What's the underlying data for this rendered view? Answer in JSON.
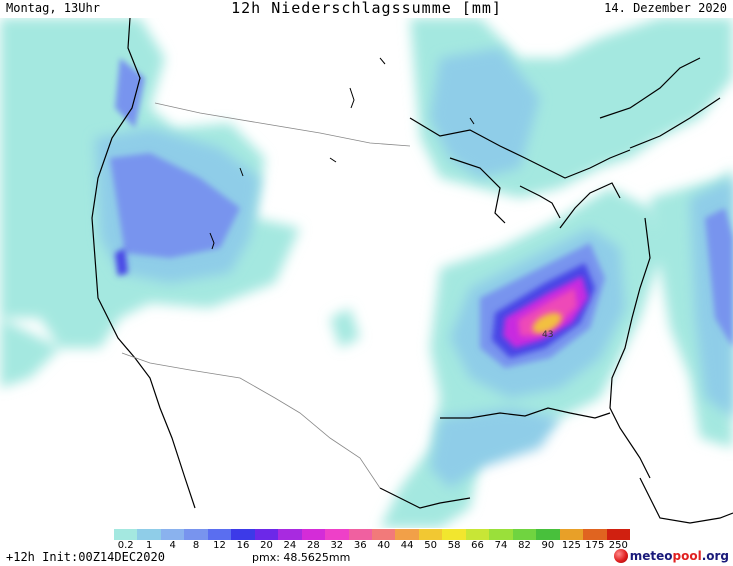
{
  "header": {
    "day_time": "Montag, 13Uhr",
    "title": "12h Niederschlagssumme [mm]",
    "date": "14. Dezember 2020"
  },
  "map": {
    "max_label": "43",
    "land_color": "#ffffff",
    "outline_color": "#000000",
    "border_color": "#888888"
  },
  "legend": {
    "labels": [
      "0.2",
      "1",
      "4",
      "8",
      "12",
      "16",
      "20",
      "24",
      "28",
      "32",
      "36",
      "40",
      "44",
      "50",
      "58",
      "66",
      "74",
      "82",
      "90",
      "125",
      "175",
      "250"
    ],
    "colors": [
      "#a4e8e0",
      "#8fcde8",
      "#8ab2ee",
      "#7894ee",
      "#5a6ef0",
      "#3c3ae8",
      "#6c28e8",
      "#a82ae0",
      "#d42cd8",
      "#ee40c8",
      "#f060a0",
      "#f27a7a",
      "#f2a048",
      "#f2c832",
      "#f2e62e",
      "#c8e636",
      "#9ae03a",
      "#70d440",
      "#48c03c",
      "#e8a028",
      "#e06420",
      "#d02010"
    ]
  },
  "footer": {
    "run_info": "+12h Init:00Z14DEC2020",
    "pmx": "pmx: 48.5625mm"
  },
  "brand": {
    "part1": "meteo",
    "part2": "pool",
    "part3": ".org"
  }
}
